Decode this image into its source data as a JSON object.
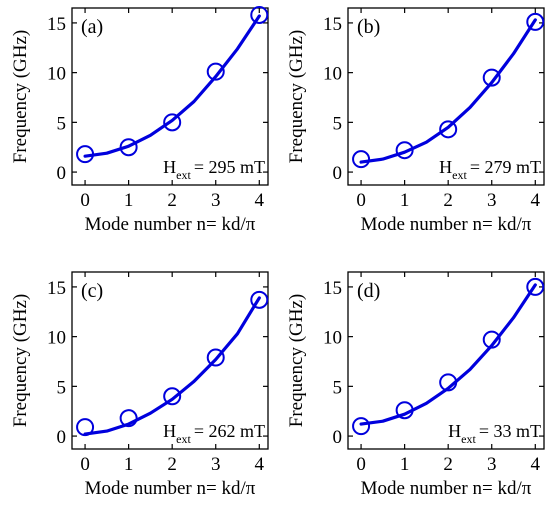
{
  "chart_data": [
    {
      "type": "scatter",
      "panel_label": "(a)",
      "xlabel": "Mode number n= kd/π",
      "ylabel": "Frequency (GHz)",
      "field_main": "H",
      "field_sub": "ext",
      "field_value": "= 295 mT",
      "xlim": [
        -0.3,
        4.2
      ],
      "ylim": [
        -1.3,
        16.5
      ],
      "xticks": [
        0,
        1,
        2,
        3,
        4
      ],
      "yticks": [
        0,
        5,
        10,
        15
      ],
      "series": [
        {
          "kind": "markers",
          "x": [
            0,
            1,
            2,
            3,
            4
          ],
          "y": [
            1.8,
            2.5,
            5.0,
            10.1,
            15.8
          ]
        },
        {
          "kind": "fit",
          "x": [
            0,
            0.5,
            1,
            1.5,
            2,
            2.5,
            3,
            3.5,
            4
          ],
          "y": [
            1.6,
            1.9,
            2.6,
            3.7,
            5.2,
            7.1,
            9.6,
            12.4,
            15.7
          ]
        }
      ]
    },
    {
      "type": "scatter",
      "panel_label": "(b)",
      "xlabel": "Mode number n= kd/π",
      "ylabel": "Frequency (GHz)",
      "field_main": "H",
      "field_sub": "ext",
      "field_value": "= 279 mT",
      "xlim": [
        -0.3,
        4.2
      ],
      "ylim": [
        -1.3,
        16.5
      ],
      "xticks": [
        0,
        1,
        2,
        3,
        4
      ],
      "yticks": [
        0,
        5,
        10,
        15
      ],
      "series": [
        {
          "kind": "markers",
          "x": [
            0,
            1,
            2,
            3,
            4
          ],
          "y": [
            1.3,
            2.2,
            4.3,
            9.5,
            15.1
          ]
        },
        {
          "kind": "fit",
          "x": [
            0,
            0.5,
            1,
            1.5,
            2,
            2.5,
            3,
            3.5,
            4
          ],
          "y": [
            1.0,
            1.3,
            2.0,
            3.0,
            4.5,
            6.5,
            9.0,
            11.9,
            15.3
          ]
        }
      ]
    },
    {
      "type": "scatter",
      "panel_label": "(c)",
      "xlabel": "Mode number n= kd/π",
      "ylabel": "Frequency (GHz)",
      "field_main": "H",
      "field_sub": "ext",
      "field_value": "= 262 mT",
      "xlim": [
        -0.3,
        4.2
      ],
      "ylim": [
        -1.3,
        16.5
      ],
      "xticks": [
        0,
        1,
        2,
        3,
        4
      ],
      "yticks": [
        0,
        5,
        10,
        15
      ],
      "series": [
        {
          "kind": "markers",
          "x": [
            0,
            1,
            2,
            3,
            4
          ],
          "y": [
            0.9,
            1.8,
            4.0,
            7.9,
            13.7
          ]
        },
        {
          "kind": "fit",
          "x": [
            0,
            0.5,
            1,
            1.5,
            2,
            2.5,
            3,
            3.5,
            4
          ],
          "y": [
            0.2,
            0.5,
            1.2,
            2.3,
            3.7,
            5.5,
            7.7,
            10.3,
            13.9
          ]
        }
      ]
    },
    {
      "type": "scatter",
      "panel_label": "(d)",
      "xlabel": "Mode number n= kd/π",
      "ylabel": "Frequency (GHz)",
      "field_main": "H",
      "field_sub": "ext",
      "field_value": "= 33 mT",
      "xlim": [
        -0.3,
        4.2
      ],
      "ylim": [
        -1.3,
        16.5
      ],
      "xticks": [
        0,
        1,
        2,
        3,
        4
      ],
      "yticks": [
        0,
        5,
        10,
        15
      ],
      "series": [
        {
          "kind": "markers",
          "x": [
            0,
            1,
            2,
            3,
            4
          ],
          "y": [
            1.0,
            2.6,
            5.4,
            9.7,
            15.0
          ]
        },
        {
          "kind": "fit",
          "x": [
            0,
            0.5,
            1,
            1.5,
            2,
            2.5,
            3,
            3.5,
            4
          ],
          "y": [
            1.2,
            1.5,
            2.2,
            3.3,
            4.8,
            6.7,
            9.1,
            11.9,
            15.2
          ]
        }
      ]
    }
  ],
  "colors": {
    "series": "#0000dd",
    "axis": "#000000"
  }
}
